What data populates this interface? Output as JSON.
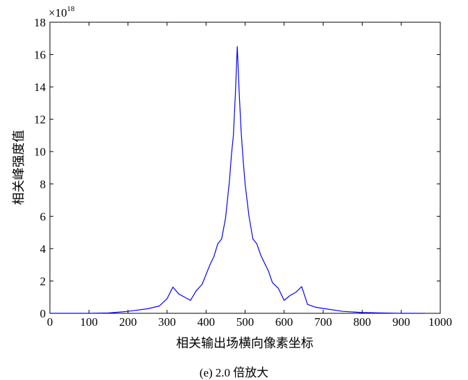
{
  "chart_data": {
    "type": "line",
    "xlabel": "相关输出场横向像素坐标",
    "ylabel": "相关峰强度值",
    "y_exponent_label": "×10",
    "y_exponent": "18",
    "xlim": [
      0,
      1000
    ],
    "ylim": [
      0,
      18
    ],
    "x_ticks": [
      "0",
      "100",
      "200",
      "300",
      "400",
      "500",
      "600",
      "700",
      "800",
      "900",
      "1000"
    ],
    "y_ticks": [
      "0",
      "2",
      "4",
      "6",
      "8",
      "10",
      "12",
      "14",
      "16",
      "18"
    ],
    "grid": false,
    "line_color": "#0000ff",
    "series": [
      {
        "x": [
          0,
          100,
          150,
          200,
          250,
          280,
          300,
          315,
          330,
          345,
          360,
          375,
          390,
          400,
          410,
          420,
          430,
          440,
          450,
          460,
          465,
          470,
          475,
          480,
          485,
          490,
          495,
          500,
          510,
          520,
          530,
          540,
          550,
          560,
          570,
          585,
          600,
          615,
          630,
          645,
          660,
          680,
          700,
          750,
          800,
          850,
          900,
          960
        ],
        "y": [
          0,
          0,
          0.02,
          0.12,
          0.28,
          0.45,
          0.9,
          1.62,
          1.2,
          1.0,
          0.8,
          1.4,
          1.8,
          2.4,
          3.0,
          3.5,
          4.3,
          4.6,
          5.9,
          8.2,
          9.8,
          11.0,
          13.5,
          16.5,
          13.6,
          11.2,
          9.5,
          8.0,
          6.0,
          4.6,
          4.3,
          3.6,
          3.1,
          2.6,
          1.9,
          1.55,
          0.8,
          1.1,
          1.3,
          1.65,
          0.55,
          0.38,
          0.3,
          0.12,
          0.05,
          0.02,
          0,
          0
        ]
      }
    ]
  },
  "caption": "(e) 2.0 倍放大"
}
